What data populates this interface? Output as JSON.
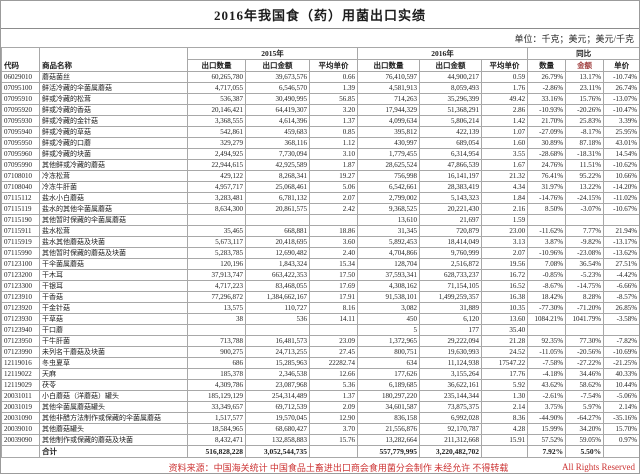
{
  "page": {
    "title": "2016年我国食（药）用菌出口实绩",
    "unit_note": "单位：千克；美元；美元/千克"
  },
  "colors": {
    "footer_red": "#cc3333",
    "yoy_value_header": "#a04040",
    "border_gray": "#a8a8a8"
  },
  "table": {
    "headers": {
      "code": "代码",
      "name": "商品名称",
      "group_2015": "2015年",
      "group_2016": "2016年",
      "group_yoy": "同比",
      "export_qty": "出口数量",
      "export_value": "出口金额",
      "avg_price": "平均单价",
      "yoy_qty": "数量",
      "yoy_value": "金额",
      "yoy_price": "单价"
    },
    "rows": [
      [
        "06029010",
        "蘑菇菌丝",
        "60,265,780",
        "39,673,576",
        "0.66",
        "76,410,597",
        "44,900,217",
        "0.59",
        "26.79%",
        "13.17%",
        "-10.74%"
      ],
      [
        "07095100",
        "鲜活冷藏的伞菌属蘑菇",
        "4,717,055",
        "6,546,570",
        "1.39",
        "4,581,913",
        "8,059,493",
        "1.76",
        "-2.86%",
        "23.11%",
        "26.74%"
      ],
      [
        "07095910",
        "鲜或冷藏的松茸",
        "536,387",
        "30,490,995",
        "56.85",
        "714,263",
        "35,296,399",
        "49.42",
        "33.16%",
        "15.76%",
        "-13.07%"
      ],
      [
        "07095920",
        "鲜或冷藏的香菇",
        "20,146,421",
        "64,419,307",
        "3.20",
        "17,944,329",
        "51,368,291",
        "2.86",
        "-10.93%",
        "-20.26%",
        "-10.47%"
      ],
      [
        "07095930",
        "鲜或冷藏的金针菇",
        "3,368,555",
        "4,614,396",
        "1.37",
        "4,099,634",
        "5,806,214",
        "1.42",
        "21.70%",
        "25.83%",
        "3.39%"
      ],
      [
        "07095940",
        "鲜或冷藏的草菇",
        "542,861",
        "459,683",
        "0.85",
        "395,812",
        "422,139",
        "1.07",
        "-27.09%",
        "-8.17%",
        "25.95%"
      ],
      [
        "07095950",
        "鲜或冷藏的口蘑",
        "329,279",
        "368,116",
        "1.12",
        "430,997",
        "689,054",
        "1.60",
        "30.89%",
        "87.18%",
        "43.01%"
      ],
      [
        "07095960",
        "鲜或冷藏的块菌",
        "2,494,925",
        "7,730,094",
        "3.10",
        "1,779,455",
        "6,314,954",
        "3.55",
        "-28.68%",
        "-18.31%",
        "14.54%"
      ],
      [
        "07095990",
        "其他鲜或冷藏的蘑菇",
        "22,944,615",
        "42,925,589",
        "1.87",
        "28,625,524",
        "47,866,539",
        "1.67",
        "24.76%",
        "11.51%",
        "-10.62%"
      ],
      [
        "07108010",
        "冷冻松茸",
        "429,122",
        "8,268,341",
        "19.27",
        "756,998",
        "16,141,197",
        "21.32",
        "76.41%",
        "95.22%",
        "10.66%"
      ],
      [
        "07108040",
        "冷冻牛肝菌",
        "4,957,717",
        "25,068,461",
        "5.06",
        "6,542,661",
        "28,383,419",
        "4.34",
        "31.97%",
        "13.22%",
        "-14.20%"
      ],
      [
        "07115112",
        "盐水小白蘑菇",
        "3,283,481",
        "6,781,132",
        "2.07",
        "2,799,002",
        "5,143,323",
        "1.84",
        "-14.76%",
        "-24.15%",
        "-11.02%"
      ],
      [
        "07115119",
        "盐水的其他伞菌属蘑菇",
        "8,634,300",
        "20,861,575",
        "2.42",
        "9,368,525",
        "20,221,430",
        "2.16",
        "8.50%",
        "-3.07%",
        "-10.67%"
      ],
      [
        "07115190",
        "其他暂时保藏的伞菌属蘑菇",
        "",
        "",
        "",
        "13,610",
        "21,697",
        "1.59",
        "",
        "",
        ""
      ],
      [
        "07115911",
        "盐水松茸",
        "35,465",
        "668,881",
        "18.86",
        "31,345",
        "720,879",
        "23.00",
        "-11.62%",
        "7.77%",
        "21.94%"
      ],
      [
        "07115919",
        "盐水其他蘑菇及块菌",
        "5,673,117",
        "20,418,695",
        "3.60",
        "5,892,453",
        "18,414,049",
        "3.13",
        "3.87%",
        "-9.82%",
        "-13.17%"
      ],
      [
        "07115990",
        "其他暂时保藏的蘑菇及块菌",
        "5,283,785",
        "12,690,482",
        "2.40",
        "4,704,866",
        "9,760,999",
        "2.07",
        "-10.96%",
        "-23.08%",
        "-13.62%"
      ],
      [
        "07123100",
        "干伞菌属蘑菇",
        "120,196",
        "1,843,324",
        "15.34",
        "128,704",
        "2,516,872",
        "19.56",
        "7.08%",
        "36.54%",
        "27.51%"
      ],
      [
        "07123200",
        "干木耳",
        "37,913,747",
        "663,422,353",
        "17.50",
        "37,593,341",
        "628,733,237",
        "16.72",
        "-0.85%",
        "-5.23%",
        "-4.42%"
      ],
      [
        "07123300",
        "干银耳",
        "4,717,223",
        "83,468,055",
        "17.69",
        "4,308,162",
        "71,154,105",
        "16.52",
        "-8.67%",
        "-14.75%",
        "-6.66%"
      ],
      [
        "07123910",
        "干香菇",
        "77,296,872",
        "1,384,662,167",
        "17.91",
        "91,538,101",
        "1,499,259,357",
        "16.38",
        "18.42%",
        "8.28%",
        "-8.57%"
      ],
      [
        "07123920",
        "干金针菇",
        "13,575",
        "110,727",
        "8.16",
        "3,082",
        "31,889",
        "10.35",
        "-77.30%",
        "-71.20%",
        "26.85%"
      ],
      [
        "07123930",
        "干草菇",
        "38",
        "536",
        "14.11",
        "450",
        "6,120",
        "13.60",
        "1084.21%",
        "1041.79%",
        "-3.58%"
      ],
      [
        "07123940",
        "干口蘑",
        "",
        "",
        "",
        "5",
        "177",
        "35.40",
        "",
        "",
        ""
      ],
      [
        "07123950",
        "干牛肝菌",
        "713,788",
        "16,481,573",
        "23.09",
        "1,372,965",
        "29,222,094",
        "21.28",
        "92.35%",
        "77.30%",
        "-7.82%"
      ],
      [
        "07123990",
        "未列名干蘑菇及块菌",
        "900,275",
        "24,713,255",
        "27.45",
        "800,751",
        "19,630,993",
        "24.52",
        "-11.05%",
        "-20.56%",
        "-10.69%"
      ],
      [
        "12119016",
        "冬虫夏草",
        "686",
        "15,285,963",
        "22282.74",
        "634",
        "11,124,938",
        "17547.22",
        "-7.58%",
        "-27.22%",
        "-21.25%"
      ],
      [
        "12119022",
        "天麻",
        "185,378",
        "2,346,538",
        "12.66",
        "177,626",
        "3,155,264",
        "17.76",
        "-4.18%",
        "34.46%",
        "40.33%"
      ],
      [
        "12119029",
        "茯苓",
        "4,309,786",
        "23,087,968",
        "5.36",
        "6,189,685",
        "36,622,161",
        "5.92",
        "43.62%",
        "58.62%",
        "10.44%"
      ],
      [
        "20031011",
        "小白蘑菇（洋蘑菇）罐头",
        "185,129,129",
        "254,314,489",
        "1.37",
        "180,297,220",
        "235,144,344",
        "1.30",
        "-2.61%",
        "-7.54%",
        "-5.06%"
      ],
      [
        "20031019",
        "其他伞菌属蘑菇罐头",
        "33,349,657",
        "69,712,539",
        "2.09",
        "34,601,587",
        "73,875,375",
        "2.14",
        "3.75%",
        "5.97%",
        "2.14%"
      ],
      [
        "20031090",
        "其他非醋方法制作或保藏的伞菌属蘑菇",
        "1,517,577",
        "19,570,045",
        "12.90",
        "836,158",
        "6,992,028",
        "8.36",
        "-44.90%",
        "-64.27%",
        "-35.16%"
      ],
      [
        "20039010",
        "其他蘑菇罐头",
        "18,584,965",
        "68,680,427",
        "3.70",
        "21,556,876",
        "92,170,787",
        "4.28",
        "15.99%",
        "34.20%",
        "15.70%"
      ],
      [
        "20039090",
        "其他制作或保藏的蘑菇及块菌",
        "8,432,471",
        "132,858,883",
        "15.76",
        "13,282,664",
        "211,312,668",
        "15.91",
        "57.52%",
        "59.05%",
        "0.97%"
      ]
    ],
    "total": [
      "",
      "合计",
      "516,828,228",
      "3,052,544,735",
      "",
      "557,779,995",
      "3,220,482,702",
      "",
      "7.92%",
      "5.50%",
      ""
    ]
  },
  "footer": {
    "source": "资料来源：中国海关统计 中国食品土畜进出口商会食用菌分会制作 未经允许 不得转载",
    "rights": "All Rights Reserved"
  }
}
